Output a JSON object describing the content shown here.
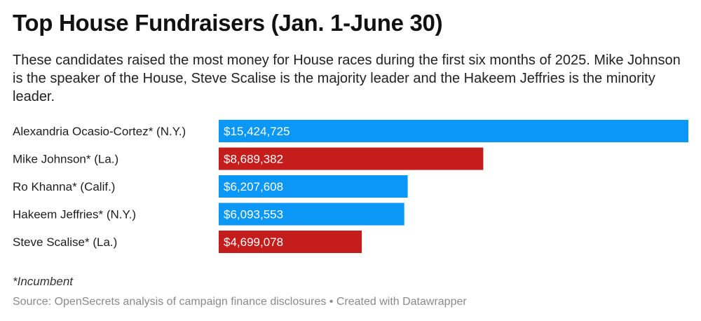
{
  "header": {
    "title": "Top House Fundraisers (Jan. 1-June 30)",
    "subtitle": "These candidates raised the most money for House races during the first six months of 2025. Mike Johnson is the speaker of the House, Steve Scalise is the majority leader and the Hakeem Jeffries is the minority leader."
  },
  "colors": {
    "democrat": "#0a97f5",
    "republican": "#c51c1c"
  },
  "chart_data": {
    "type": "bar",
    "orientation": "horizontal",
    "title": "Top House Fundraisers (Jan. 1-June 30)",
    "categories": [
      "Alexandria Ocasio-Cortez* (N.Y.)",
      "Mike Johnson* (La.)",
      "Ro Khanna* (Calif.)",
      "Hakeem Jeffries* (N.Y.)",
      "Steve Scalise* (La.)"
    ],
    "values": [
      15424725,
      8689382,
      6207608,
      6093553,
      4699078
    ],
    "value_labels": [
      "$15,424,725",
      "$8,689,382",
      "$6,207,608",
      "$6,093,553",
      "$4,699,078"
    ],
    "bar_colors": [
      "#0a97f5",
      "#c51c1c",
      "#0a97f5",
      "#0a97f5",
      "#c51c1c"
    ],
    "xlim": [
      0,
      15424725
    ],
    "grid": false,
    "legend": "none"
  },
  "footer": {
    "note": "*Incumbent",
    "source": "Source: OpenSecrets analysis of campaign finance disclosures • Created with Datawrapper"
  }
}
